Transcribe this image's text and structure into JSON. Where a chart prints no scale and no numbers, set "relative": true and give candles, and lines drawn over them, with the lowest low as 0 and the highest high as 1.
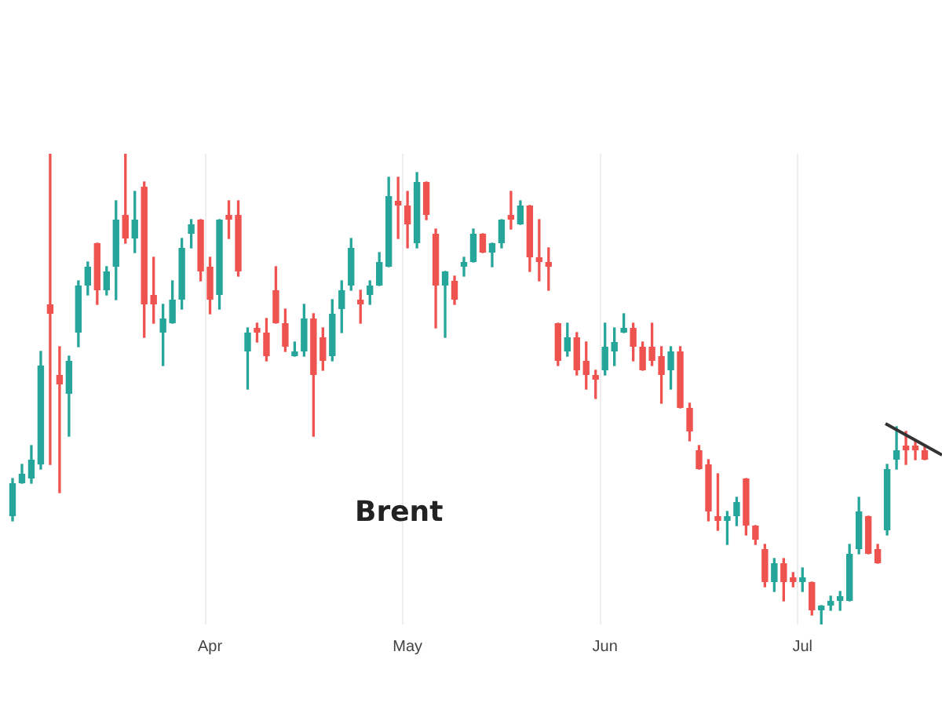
{
  "chart_data": {
    "type": "candlestick",
    "relative": true,
    "grid": "x",
    "annotations": [
      "Brent"
    ],
    "categories": [
      null,
      null,
      null,
      null,
      null,
      null,
      null,
      null,
      null,
      null,
      null,
      null,
      null,
      null,
      null,
      null,
      null,
      null,
      null,
      null,
      null,
      "Apr",
      null,
      null,
      null,
      null,
      null,
      null,
      null,
      null,
      null,
      null,
      null,
      null,
      null,
      null,
      null,
      null,
      null,
      null,
      null,
      null,
      "May",
      null,
      null,
      null,
      null,
      null,
      null,
      null,
      null,
      null,
      null,
      null,
      null,
      null,
      null,
      null,
      null,
      null,
      null,
      null,
      null,
      "Jun",
      null,
      null,
      null,
      null,
      null,
      null,
      null,
      null,
      null,
      null,
      null,
      null,
      null,
      null,
      null,
      null,
      null,
      null,
      null,
      null,
      "Jul",
      null,
      null,
      null,
      null,
      null,
      null,
      null,
      null,
      null,
      null,
      null,
      null,
      null
    ],
    "ohlc": [
      [
        0.23,
        0.31,
        0.22,
        0.3
      ],
      [
        0.3,
        0.34,
        0.3,
        0.32
      ],
      [
        0.31,
        0.38,
        0.3,
        0.35
      ],
      [
        0.34,
        0.58,
        0.33,
        0.55
      ],
      [
        0.68,
        1,
        0.34,
        0.66
      ],
      [
        0.53,
        0.59,
        0.28,
        0.51
      ],
      [
        0.49,
        0.57,
        0.4,
        0.56
      ],
      [
        0.62,
        0.73,
        0.59,
        0.72
      ],
      [
        0.72,
        0.77,
        0.7,
        0.76
      ],
      [
        0.81,
        0.81,
        0.68,
        0.71
      ],
      [
        0.71,
        0.76,
        0.7,
        0.75
      ],
      [
        0.76,
        0.9,
        0.69,
        0.86
      ],
      [
        0.87,
        1,
        0.81,
        0.82
      ],
      [
        0.82,
        0.92,
        0.79,
        0.86
      ],
      [
        0.93,
        0.94,
        0.61,
        0.68
      ],
      [
        0.7,
        0.78,
        0.64,
        0.68
      ],
      [
        0.62,
        0.68,
        0.55,
        0.65
      ],
      [
        0.64,
        0.73,
        0.64,
        0.69
      ],
      [
        0.69,
        0.82,
        0.67,
        0.8
      ],
      [
        0.83,
        0.86,
        0.8,
        0.85
      ],
      [
        0.86,
        0.86,
        0.73,
        0.75
      ],
      [
        0.76,
        0.78,
        0.66,
        0.69
      ],
      [
        0.7,
        0.86,
        0.67,
        0.86
      ],
      [
        0.87,
        0.9,
        0.82,
        0.86
      ],
      [
        0.87,
        0.9,
        0.74,
        0.75
      ],
      [
        0.58,
        0.63,
        0.5,
        0.62
      ],
      [
        0.63,
        0.64,
        0.6,
        0.62
      ],
      [
        0.62,
        0.65,
        0.56,
        0.57
      ],
      [
        0.71,
        0.76,
        0.64,
        0.64
      ],
      [
        0.64,
        0.67,
        0.58,
        0.59
      ],
      [
        0.57,
        0.6,
        0.57,
        0.58
      ],
      [
        0.58,
        0.68,
        0.57,
        0.65
      ],
      [
        0.65,
        0.66,
        0.4,
        0.53
      ],
      [
        0.61,
        0.63,
        0.54,
        0.56
      ],
      [
        0.57,
        0.69,
        0.56,
        0.66
      ],
      [
        0.67,
        0.73,
        0.62,
        0.71
      ],
      [
        0.72,
        0.82,
        0.71,
        0.8
      ],
      [
        0.69,
        0.71,
        0.64,
        0.68
      ],
      [
        0.7,
        0.73,
        0.68,
        0.72
      ],
      [
        0.72,
        0.79,
        0.72,
        0.77
      ],
      [
        0.76,
        0.95,
        0.76,
        0.91
      ],
      [
        0.9,
        0.95,
        0.82,
        0.89
      ],
      [
        0.89,
        0.92,
        0.8,
        0.85
      ],
      [
        0.81,
        0.96,
        0.8,
        0.94
      ],
      [
        0.94,
        0.94,
        0.86,
        0.87
      ],
      [
        0.83,
        0.84,
        0.63,
        0.72
      ],
      [
        0.72,
        0.75,
        0.61,
        0.75
      ],
      [
        0.73,
        0.74,
        0.68,
        0.69
      ],
      [
        0.76,
        0.78,
        0.74,
        0.77
      ],
      [
        0.77,
        0.84,
        0.77,
        0.83
      ],
      [
        0.83,
        0.83,
        0.79,
        0.79
      ],
      [
        0.79,
        0.81,
        0.76,
        0.81
      ],
      [
        0.81,
        0.86,
        0.8,
        0.86
      ],
      [
        0.87,
        0.92,
        0.84,
        0.86
      ],
      [
        0.85,
        0.9,
        0.85,
        0.89
      ],
      [
        0.89,
        0.89,
        0.75,
        0.78
      ],
      [
        0.78,
        0.86,
        0.73,
        0.77
      ],
      [
        0.77,
        0.8,
        0.71,
        0.76
      ],
      [
        0.64,
        0.64,
        0.55,
        0.56
      ],
      [
        0.58,
        0.64,
        0.57,
        0.61
      ],
      [
        0.61,
        0.62,
        0.53,
        0.54
      ],
      [
        0.56,
        0.6,
        0.5,
        0.53
      ],
      [
        0.53,
        0.54,
        0.48,
        0.52
      ],
      [
        0.54,
        0.64,
        0.53,
        0.59
      ],
      [
        0.58,
        0.63,
        0.55,
        0.6
      ],
      [
        0.62,
        0.66,
        0.62,
        0.63
      ],
      [
        0.63,
        0.64,
        0.56,
        0.59
      ],
      [
        0.59,
        0.6,
        0.54,
        0.54
      ],
      [
        0.59,
        0.64,
        0.55,
        0.56
      ],
      [
        0.57,
        0.59,
        0.47,
        0.53
      ],
      [
        0.54,
        0.59,
        0.5,
        0.58
      ],
      [
        0.58,
        0.59,
        0.46,
        0.46
      ],
      [
        0.46,
        0.47,
        0.39,
        0.41
      ],
      [
        0.37,
        0.38,
        0.33,
        0.33
      ],
      [
        0.34,
        0.35,
        0.22,
        0.24
      ],
      [
        0.23,
        0.32,
        0.2,
        0.22
      ],
      [
        0.22,
        0.24,
        0.17,
        0.23
      ],
      [
        0.23,
        0.27,
        0.21,
        0.26
      ],
      [
        0.31,
        0.31,
        0.19,
        0.21
      ],
      [
        0.21,
        0.21,
        0.17,
        0.18
      ],
      [
        0.16,
        0.17,
        0.08,
        0.09
      ],
      [
        0.09,
        0.14,
        0.07,
        0.13
      ],
      [
        0.13,
        0.14,
        0.05,
        0.09
      ],
      [
        0.1,
        0.11,
        0.08,
        0.09
      ],
      [
        0.09,
        0.12,
        0.07,
        0.1
      ],
      [
        0.09,
        0.09,
        0.02,
        0.03
      ],
      [
        0.03,
        0.04,
        0,
        0.04
      ],
      [
        0.04,
        0.06,
        0.03,
        0.05
      ],
      [
        0.05,
        0.07,
        0.03,
        0.06
      ],
      [
        0.05,
        0.17,
        0.05,
        0.15
      ],
      [
        0.16,
        0.27,
        0.15,
        0.24
      ],
      [
        0.23,
        0.23,
        0.15,
        0.15
      ],
      [
        0.16,
        0.17,
        0.13,
        0.13
      ],
      [
        0.2,
        0.34,
        0.19,
        0.33
      ],
      [
        0.35,
        0.42,
        0.33,
        0.37
      ],
      [
        0.38,
        0.41,
        0.34,
        0.37
      ],
      [
        0.38,
        0.39,
        0.35,
        0.37
      ],
      [
        0.37,
        0.38,
        0.35,
        0.35
      ]
    ],
    "colors": [
      "#26a69a",
      "#26a69a",
      "#26a69a",
      "#26a69a",
      "#ef5350",
      "#ef5350",
      "#26a69a",
      "#26a69a",
      "#26a69a",
      "#ef5350",
      "#26a69a",
      "#26a69a",
      "#ef5350",
      "#26a69a",
      "#ef5350",
      "#ef5350",
      "#26a69a",
      "#26a69a",
      "#26a69a",
      "#26a69a",
      "#ef5350",
      "#ef5350",
      "#26a69a",
      "#ef5350",
      "#ef5350",
      "#26a69a",
      "#ef5350",
      "#ef5350",
      "#ef5350",
      "#ef5350",
      "#26a69a",
      "#26a69a",
      "#ef5350",
      "#ef5350",
      "#26a69a",
      "#26a69a",
      "#26a69a",
      "#ef5350",
      "#26a69a",
      "#26a69a",
      "#26a69a",
      "#ef5350",
      "#ef5350",
      "#26a69a",
      "#ef5350",
      "#ef5350",
      "#26a69a",
      "#ef5350",
      "#26a69a",
      "#26a69a",
      "#ef5350",
      "#26a69a",
      "#26a69a",
      "#ef5350",
      "#26a69a",
      "#ef5350",
      "#ef5350",
      "#ef5350",
      "#ef5350",
      "#26a69a",
      "#ef5350",
      "#ef5350",
      "#ef5350",
      "#26a69a",
      "#26a69a",
      "#26a69a",
      "#ef5350",
      "#ef5350",
      "#ef5350",
      "#ef5350",
      "#26a69a",
      "#ef5350",
      "#ef5350",
      "#ef5350",
      "#ef5350",
      "#ef5350",
      "#26a69a",
      "#26a69a",
      "#ef5350",
      "#ef5350",
      "#ef5350",
      "#26a69a",
      "#ef5350",
      "#ef5350",
      "#26a69a",
      "#ef5350",
      "#26a69a",
      "#26a69a",
      "#26a69a",
      "#26a69a",
      "#26a69a",
      "#ef5350",
      "#ef5350",
      "#26a69a",
      "#26a69a",
      "#ef5350",
      "#ef5350",
      "#ef5350"
    ]
  }
}
